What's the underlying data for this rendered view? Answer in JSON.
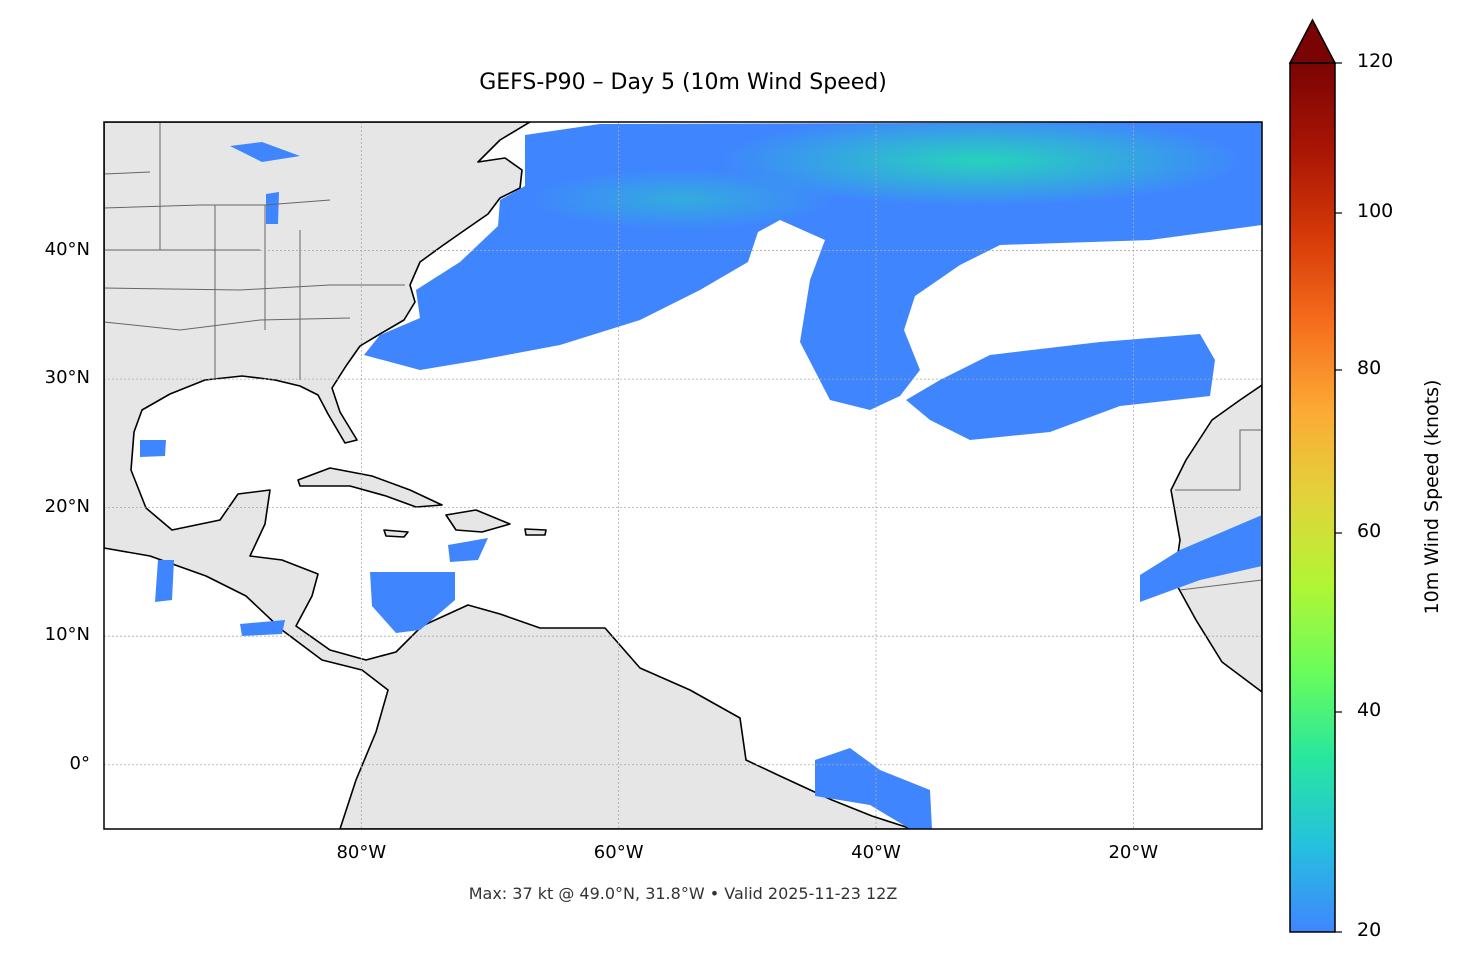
{
  "title": "GEFS-P90 – Day 5 (10m Wind Speed)",
  "footer": "Max: 37 kt @ 49.0°N, 31.8°W • Valid 2025-11-23 12Z",
  "map": {
    "projection": "plate-carree",
    "extent_lon": [
      -100,
      -10
    ],
    "extent_lat": [
      -5,
      50
    ],
    "land_color": "#e6e6e6",
    "coastline_color": "#000000",
    "border_color": "#666666",
    "gridlines": "dotted",
    "x_ticks": [
      "80°W",
      "60°W",
      "40°W",
      "20°W"
    ],
    "y_ticks": [
      "40°N",
      "30°N",
      "20°N",
      "10°N",
      "0°"
    ],
    "max_point": {
      "value_kt": 37,
      "lat": 49.0,
      "lon": -31.8
    }
  },
  "colorbar": {
    "label": "10m Wind Speed (knots)",
    "range": [
      20,
      120
    ],
    "extend": "max",
    "ticks": [
      "120",
      "100",
      "80",
      "60",
      "40",
      "20"
    ],
    "colormap": [
      "#3f86fe",
      "#25c1de",
      "#28e69f",
      "#6afd5a",
      "#b2f535",
      "#e2d33a",
      "#fcaa35",
      "#f66e1d",
      "#d63a08",
      "#a91504",
      "#7a0403"
    ]
  }
}
